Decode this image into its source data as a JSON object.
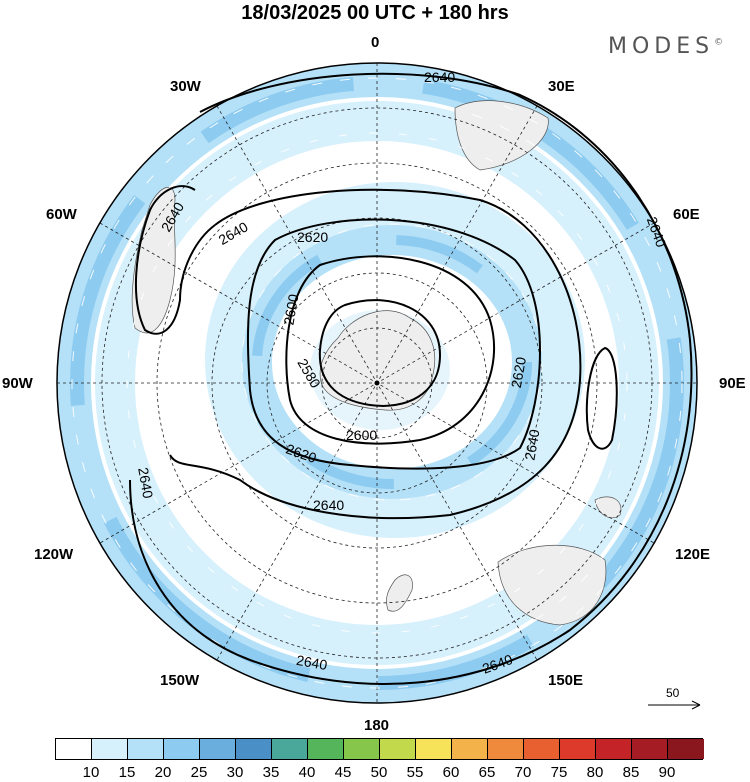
{
  "title": "18/03/2025  00 UTC  + 180 hrs",
  "logo": "MODES",
  "logo_mark": "©",
  "longitude_labels": {
    "top": "0",
    "bottom": "180",
    "left": "90W",
    "right": "90E",
    "upper_left_1": "30W",
    "upper_left_2": "60W",
    "upper_right_1": "30E",
    "upper_right_2": "60E",
    "lower_left_1": "120W",
    "lower_left_2": "150W",
    "lower_right_1": "120E",
    "lower_right_2": "150E"
  },
  "contour_labels": {
    "c2580": "2580",
    "c2600a": "2600",
    "c2600b": "2600",
    "c2620a": "2620",
    "c2620b": "2620",
    "c2620c": "2620",
    "c2640a": "2640",
    "c2640b": "2640",
    "c2640c": "2640",
    "c2640d": "2640",
    "c2640e": "2640",
    "c2640f": "2640",
    "c2640g": "2640",
    "c2640h": "2640",
    "c2640i": "2640"
  },
  "reference_vector": "50",
  "colorbar": {
    "ticks": [
      "10",
      "15",
      "20",
      "25",
      "30",
      "35",
      "40",
      "45",
      "50",
      "55",
      "60",
      "65",
      "70",
      "75",
      "80",
      "85",
      "90"
    ],
    "colors": [
      "#ffffff",
      "#d6f0fc",
      "#b4e1f8",
      "#8ecbf0",
      "#6aaede",
      "#4a8fc6",
      "#4aa89a",
      "#55b55a",
      "#86c64a",
      "#c2d94c",
      "#f6e35a",
      "#f4b24a",
      "#ef8a3c",
      "#e8602f",
      "#de3a2b",
      "#c42428",
      "#a51c24",
      "#8a161e"
    ]
  }
}
